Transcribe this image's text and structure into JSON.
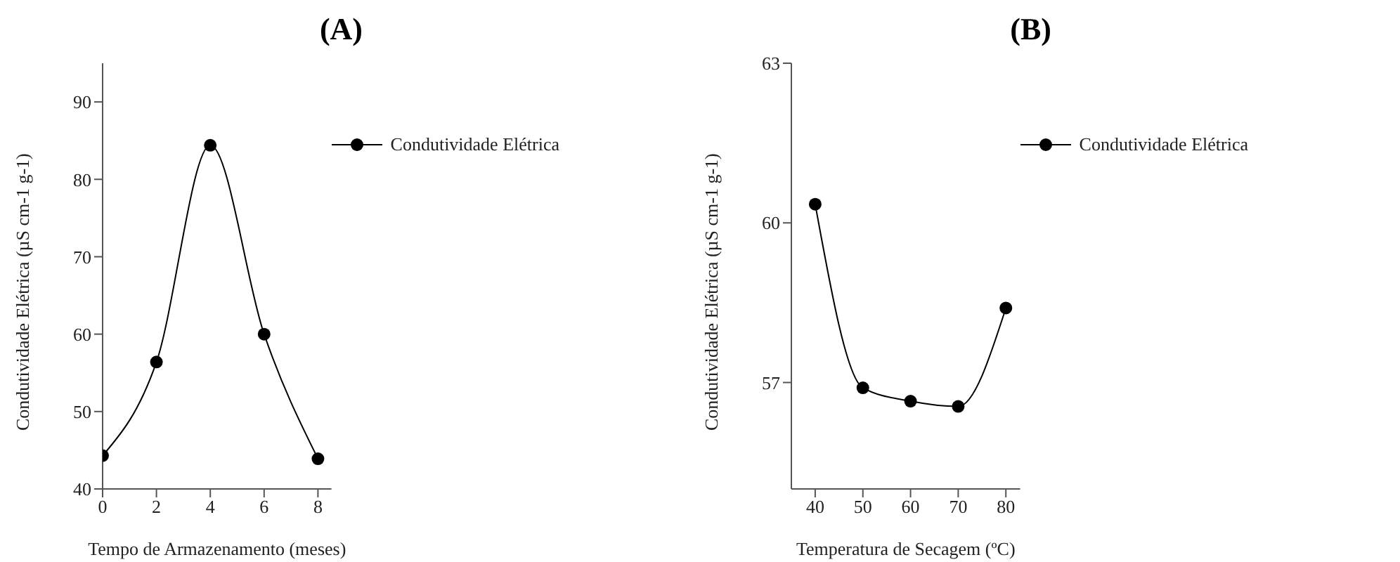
{
  "chart_data": [
    {
      "type": "line",
      "title": "(A)",
      "xlabel": "Tempo de Armazenamento (meses)",
      "ylabel": "Condutividade Elétrica (µS cm-1 g-1)",
      "x": [
        0,
        2,
        4,
        6,
        8
      ],
      "series": [
        {
          "name": "Condutividade Elétrica",
          "color": "#000000",
          "values": [
            44.3,
            56.4,
            84.4,
            60.0,
            43.9
          ]
        }
      ],
      "xlim": [
        0,
        8.5
      ],
      "xticks": [
        0,
        2,
        4,
        6,
        8
      ],
      "ylim": [
        40,
        95
      ],
      "yticks": [
        40,
        50,
        60,
        70,
        80,
        90
      ],
      "grid": false,
      "legend": "top right",
      "marker": "circle",
      "line_style": "solid"
    },
    {
      "type": "line",
      "title": "(B)",
      "xlabel": "Temperatura de Secagem (ºC)",
      "ylabel": "Condutividade Elétrica (µS cm-1 g-1)",
      "x": [
        40,
        50,
        60,
        70,
        80
      ],
      "series": [
        {
          "name": "Condutividade Elétrica",
          "color": "#000000",
          "values": [
            60.35,
            56.9,
            56.65,
            56.55,
            58.4
          ]
        }
      ],
      "xlim": [
        35,
        83
      ],
      "xticks": [
        40,
        50,
        60,
        70,
        80
      ],
      "ylim": [
        55,
        63
      ],
      "yticks": [
        57,
        60,
        63
      ],
      "grid": false,
      "legend": "top right",
      "marker": "circle",
      "line_style": "solid"
    }
  ]
}
